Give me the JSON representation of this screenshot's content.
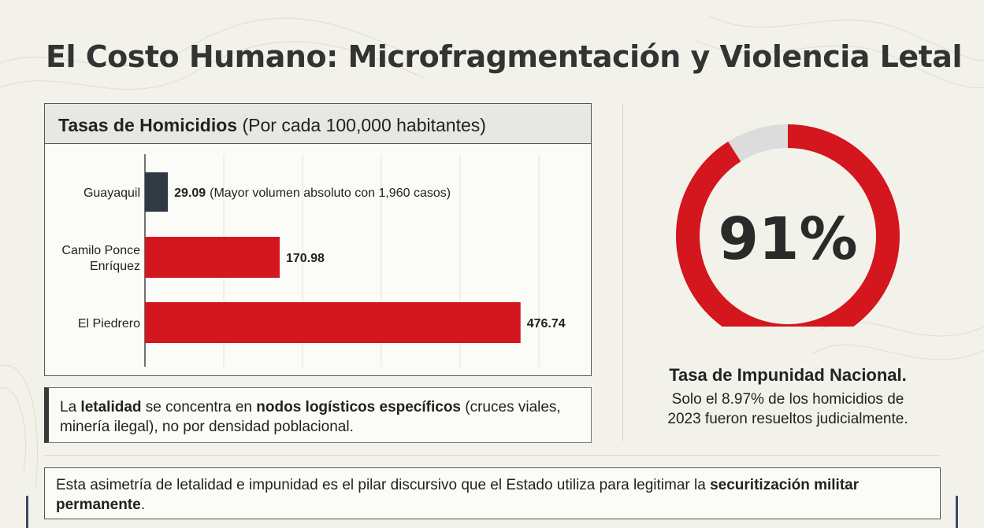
{
  "page": {
    "title": "El Costo Humano: Microfragmentación y Violencia Letal"
  },
  "chart_header": {
    "title_bold": "Tasas de Homicidios",
    "title_rest": "(Por cada 100,000 habitantes)"
  },
  "chart_data": {
    "type": "bar",
    "orientation": "horizontal",
    "title": "Tasas de Homicidios (Por cada 100,000 habitantes)",
    "xlim": [
      0,
      500
    ],
    "grid": true,
    "categories": [
      "Guayaquil",
      "Camilo Ponce Enríquez",
      "El Piedrero"
    ],
    "values": [
      29.09,
      170.98,
      476.74
    ],
    "value_labels": [
      "29.09",
      "170.98",
      "476.74"
    ],
    "annotations": [
      "(Mayor volumen absoluto con 1,960 casos)",
      "",
      ""
    ],
    "colors": [
      "#2f3a44",
      "#d4161f",
      "#d4161f"
    ]
  },
  "note": {
    "p1": "La ",
    "b1": "letalidad",
    "p2": " se concentra en ",
    "b2": "nodos logísticos específicos",
    "p3": " (cruces viales, minería ilegal), no por densidad poblacional."
  },
  "impunity": {
    "percent": 91,
    "percent_label": "91%",
    "title": "Tasa de Impunidad Nacional.",
    "desc_line1": "Solo el 8.97% de los homicidios de",
    "desc_line2": "2023 fueron resueltos judicialmente.",
    "color_main": "#d4161f",
    "color_rest": "#dcdcdc"
  },
  "bottom": {
    "p1": "Esta asimetría de letalidad e impunidad es el pilar discursivo que el Estado utiliza para legitimar la ",
    "b1": "securitización militar permanente",
    "p2": "."
  }
}
